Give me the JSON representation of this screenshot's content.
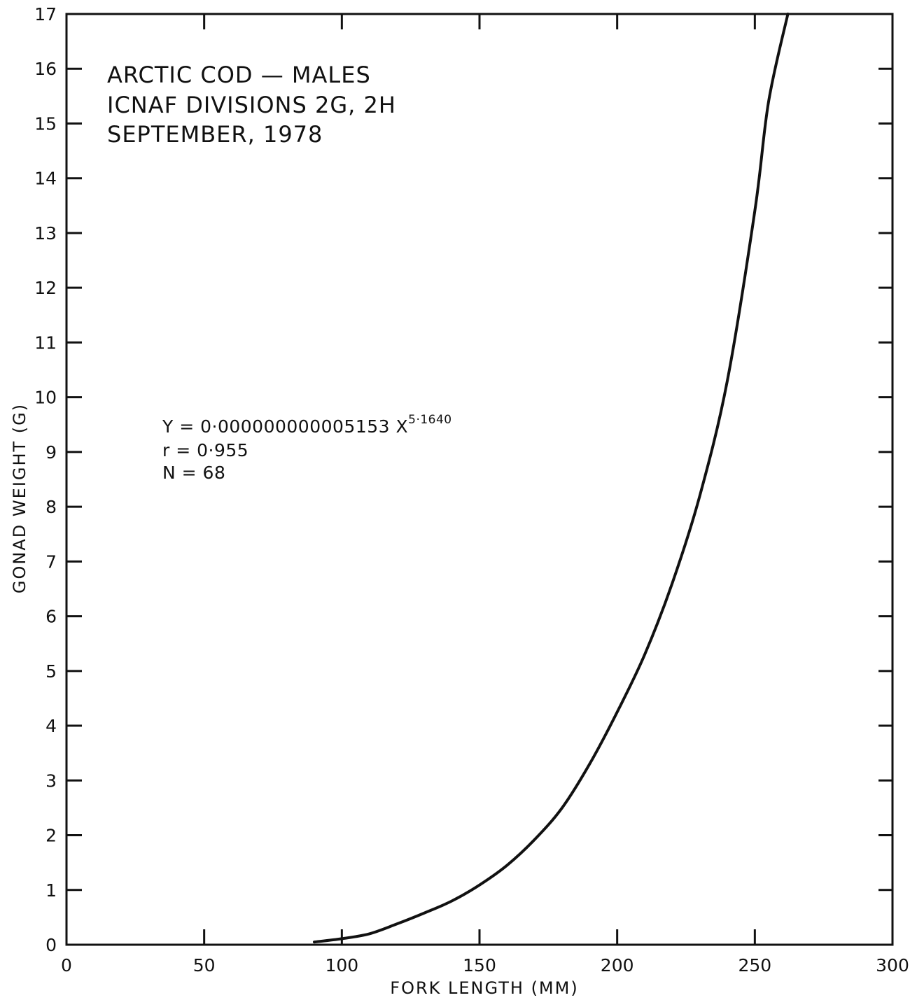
{
  "chart_data": {
    "type": "line",
    "title_lines": [
      "ARCTIC COD — MALES",
      "ICNAF DIVISIONS 2G, 2H",
      "SEPTEMBER, 1978"
    ],
    "xlabel": "FORK LENGTH (MM)",
    "ylabel": "GONAD WEIGHT (G)",
    "xlim": [
      0,
      300
    ],
    "ylim": [
      0,
      17
    ],
    "x_ticks": [
      0,
      50,
      100,
      150,
      200,
      250,
      300
    ],
    "x_tick_labels": [
      "0",
      "50",
      "100",
      "150",
      "200",
      "250",
      "300"
    ],
    "y_ticks": [
      0,
      1,
      2,
      3,
      4,
      5,
      6,
      7,
      8,
      9,
      10,
      11,
      12,
      13,
      14,
      15,
      16,
      17
    ],
    "y_tick_labels": [
      "0",
      "1",
      "2",
      "3",
      "4",
      "5",
      "6",
      "7",
      "8",
      "9",
      "10",
      "11",
      "12",
      "13",
      "14",
      "15",
      "16",
      "17"
    ],
    "grid": false,
    "equation": {
      "y_prefix": "Y = 0·000000000005153 X",
      "exponent": "5·1640",
      "r_line": "r = 0·955",
      "n_line": "N = 68"
    },
    "series": [
      {
        "x": [
          90,
          100,
          110,
          120,
          130,
          140,
          150,
          160,
          170,
          180,
          190,
          200,
          210,
          220,
          230,
          240,
          250,
          255,
          262
        ],
        "values": [
          0.05,
          0.11,
          0.2,
          0.38,
          0.58,
          0.8,
          1.09,
          1.45,
          1.92,
          2.5,
          3.3,
          4.25,
          5.3,
          6.6,
          8.2,
          10.3,
          13.4,
          15.4,
          17.0
        ]
      }
    ]
  }
}
